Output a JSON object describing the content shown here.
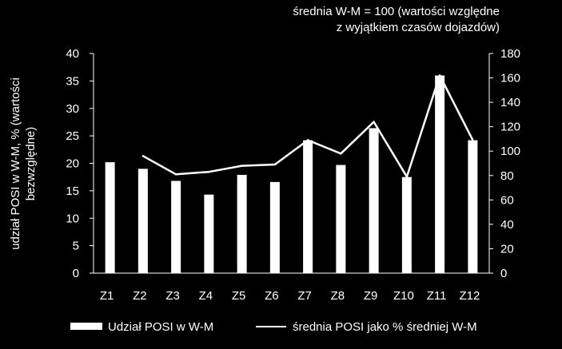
{
  "chart_data": {
    "type": "bar",
    "categories": [
      "Z1",
      "Z2",
      "Z3",
      "Z4",
      "Z5",
      "Z6",
      "Z7",
      "Z8",
      "Z9",
      "Z10",
      "Z11",
      "Z12"
    ],
    "series": [
      {
        "name": "Udział POSI w W-M",
        "kind": "bar",
        "axis": "left",
        "values": [
          20.2,
          19.0,
          16.8,
          14.3,
          17.9,
          16.6,
          24.2,
          19.7,
          26.4,
          17.5,
          36.0,
          24.2
        ]
      },
      {
        "name": "średnia POSI jako % średniej W-M",
        "kind": "line",
        "axis": "right",
        "values": [
          null,
          96,
          81,
          83,
          88,
          89,
          109,
          98,
          124,
          79,
          162,
          109
        ]
      }
    ],
    "ylabel_left": "udział POSI w W-M, % (wartości bezwzględne)",
    "ylabel_left_lines": [
      "udział POSI w W-M, % (wartości",
      "bezwzględne)"
    ],
    "ylim_left": [
      0,
      40
    ],
    "yticks_left": [
      "0",
      "5",
      "10",
      "15",
      "20",
      "25",
      "30",
      "35",
      "40"
    ],
    "ylim_right": [
      0,
      180
    ],
    "yticks_right": [
      "0",
      "20",
      "40",
      "60",
      "80",
      "100",
      "120",
      "140",
      "160",
      "180"
    ],
    "annotation_lines": [
      "średnia W-M = 100 (wartości względne",
      "z wyjątkiem czasów dojazdów)"
    ],
    "legend_position": "bottom",
    "grid": false,
    "colors": {
      "background": "#000000",
      "foreground": "#ffffff"
    }
  }
}
